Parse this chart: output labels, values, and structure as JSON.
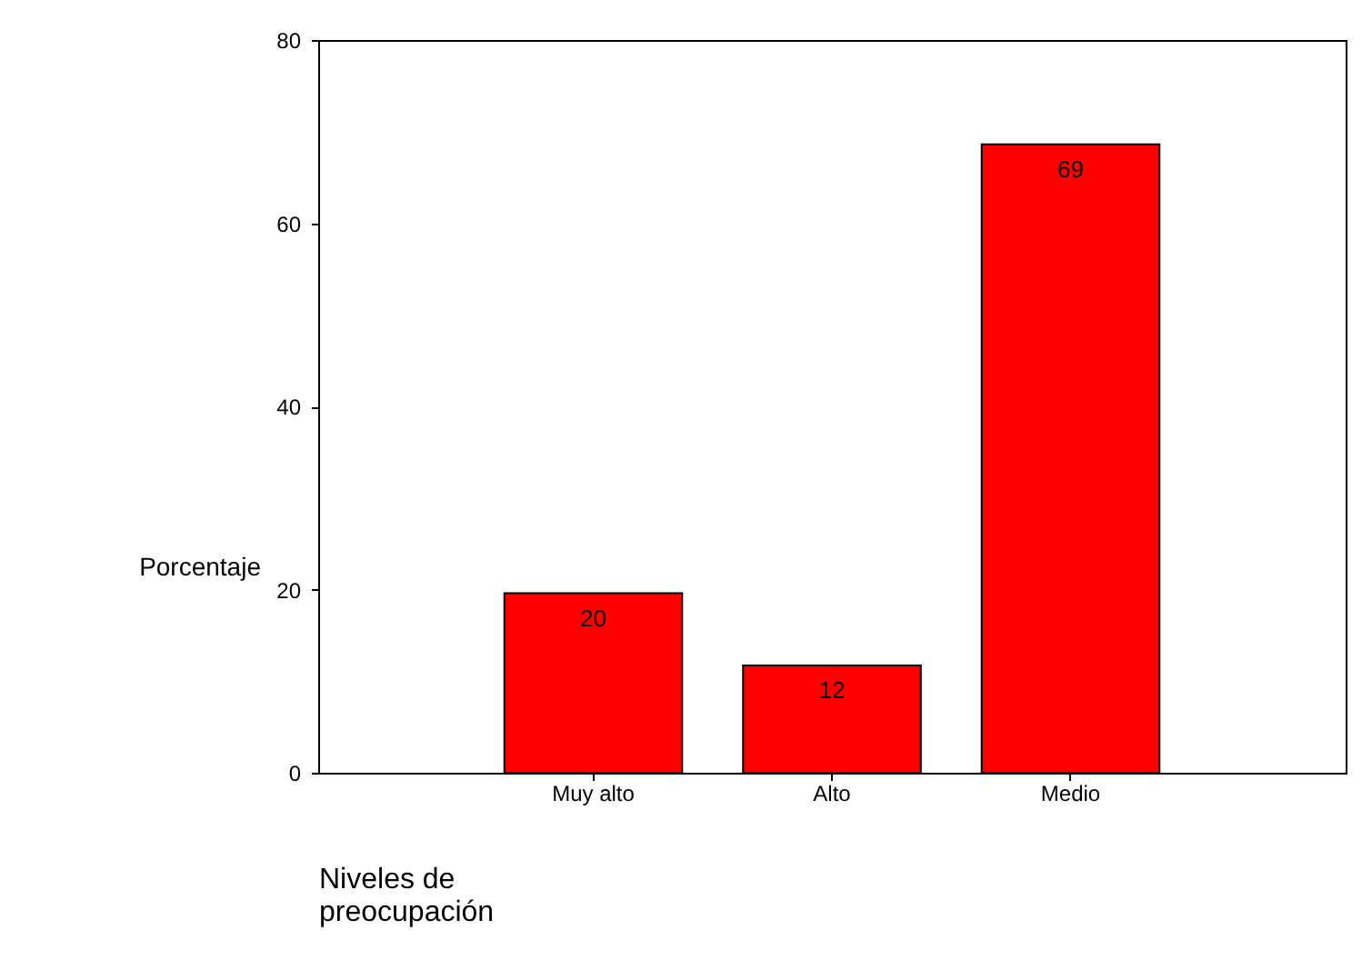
{
  "chart_data": {
    "type": "bar",
    "xlabel": "Niveles de preocupación",
    "ylabel": "Porcentaje",
    "categories": [
      "Muy alto",
      "Alto",
      "Medio"
    ],
    "values": [
      19.6,
      11.7,
      68.6
    ],
    "value_labels": [
      "20",
      "12",
      "69"
    ],
    "color": "#ff0000",
    "ylim": [
      0,
      80
    ],
    "yticks": [
      0,
      20,
      40,
      60,
      80
    ],
    "grid": false
  }
}
